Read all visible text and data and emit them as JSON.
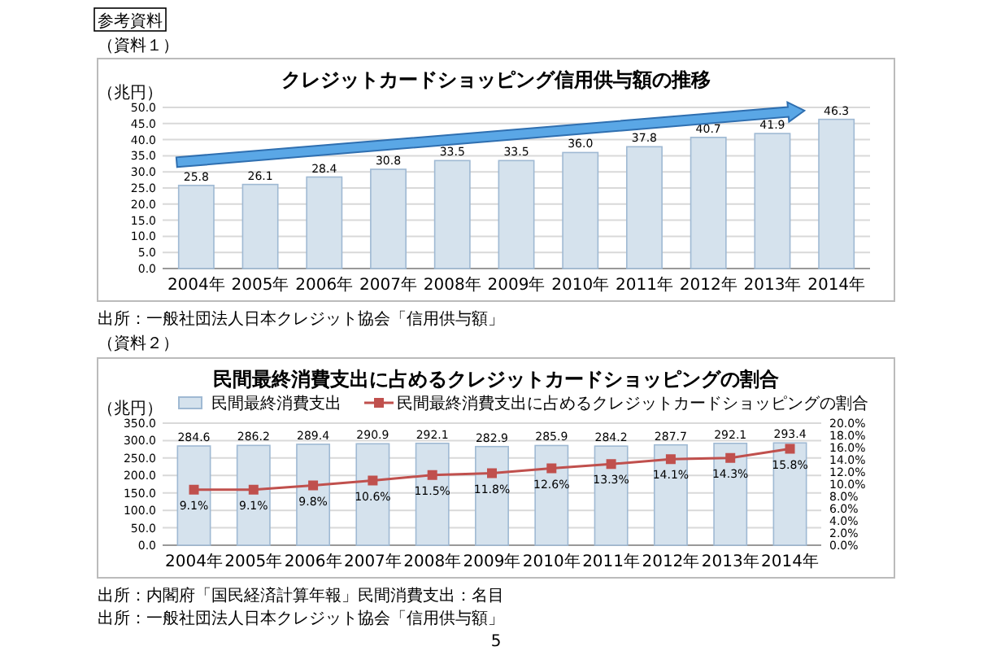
{
  "chart_data": [
    {
      "type": "bar",
      "title": "クレジットカードショッピング信用供与額の推移",
      "ylabel": "（兆円）",
      "categories": [
        "2004年",
        "2005年",
        "2006年",
        "2007年",
        "2008年",
        "2009年",
        "2010年",
        "2011年",
        "2012年",
        "2013年",
        "2014年"
      ],
      "values": [
        25.8,
        26.1,
        28.4,
        30.8,
        33.5,
        33.5,
        36.0,
        37.8,
        40.7,
        41.9,
        46.3
      ],
      "color": "#d5e2ed",
      "ylim": [
        0,
        50
      ],
      "yticks": [
        {
          "value": 0,
          "label": "0.0"
        },
        {
          "value": 5,
          "label": "5.0"
        },
        {
          "value": 10,
          "label": "10.0"
        },
        {
          "value": 15,
          "label": "15.0"
        },
        {
          "value": 20,
          "label": "20.0"
        },
        {
          "value": 25,
          "label": "25.0"
        },
        {
          "value": 30,
          "label": "30.0"
        },
        {
          "value": 35,
          "label": "35.0"
        },
        {
          "value": 40,
          "label": "40.0"
        },
        {
          "value": 45,
          "label": "45.0"
        },
        {
          "value": 50,
          "label": "50.0"
        }
      ],
      "grid": "y",
      "value_labels": [
        "25.8",
        "26.1",
        "28.4",
        "30.8",
        "33.5",
        "33.5",
        "36.0",
        "37.8",
        "40.7",
        "41.9",
        "46.3"
      ],
      "annotations": [
        "参考資料",
        "（資料１）",
        "出所：一般社団法人日本クレジット協会「信用供与額」"
      ]
    },
    {
      "type": "bar",
      "title": "民間最終消費支出に占めるクレジットカードショッピングの割合",
      "ylabel": "（兆円）",
      "categories": [
        "2004年",
        "2005年",
        "2006年",
        "2007年",
        "2008年",
        "2009年",
        "2010年",
        "2011年",
        "2012年",
        "2013年",
        "2014年"
      ],
      "series": [
        {
          "name": "民間最終消費支出",
          "color": "#d5e2ed",
          "values": [
            284.6,
            286.2,
            289.4,
            290.9,
            292.1,
            282.9,
            285.9,
            284.2,
            287.7,
            292.1,
            293.4
          ],
          "value_labels": [
            "284.6",
            "286.2",
            "289.4",
            "290.9",
            "292.1",
            "282.9",
            "285.9",
            "284.2",
            "287.7",
            "292.1",
            "293.4"
          ]
        },
        {
          "name": "民間最終消費支出に占めるクレジットカードショッピングの割合",
          "type": "line",
          "axis": "y2",
          "color": "#c0504d",
          "values": [
            9.1,
            9.1,
            9.8,
            10.6,
            11.5,
            11.8,
            12.6,
            13.3,
            14.1,
            14.3,
            15.8
          ],
          "value_labels": [
            "9.1%",
            "9.1%",
            "9.8%",
            "10.6%",
            "11.5%",
            "11.8%",
            "12.6%",
            "13.3%",
            "14.1%",
            "14.3%",
            "15.8%"
          ]
        }
      ],
      "ylim": [
        0,
        350
      ],
      "yticks": [
        {
          "value": 0,
          "label": "0.0"
        },
        {
          "value": 50,
          "label": "50.0"
        },
        {
          "value": 100,
          "label": "100.0"
        },
        {
          "value": 150,
          "label": "150.0"
        },
        {
          "value": 200,
          "label": "200.0"
        },
        {
          "value": 250,
          "label": "250.0"
        },
        {
          "value": 300,
          "label": "300.0"
        },
        {
          "value": 350,
          "label": "350.0"
        }
      ],
      "y2lim": [
        0,
        20
      ],
      "y2ticks": [
        {
          "value": 0,
          "label": "0.0%"
        },
        {
          "value": 2,
          "label": "2.0%"
        },
        {
          "value": 4,
          "label": "4.0%"
        },
        {
          "value": 6,
          "label": "6.0%"
        },
        {
          "value": 8,
          "label": "8.0%"
        },
        {
          "value": 10,
          "label": "10.0%"
        },
        {
          "value": 12,
          "label": "12.0%"
        },
        {
          "value": 14,
          "label": "14.0%"
        },
        {
          "value": 16,
          "label": "16.0%"
        },
        {
          "value": 18,
          "label": "18.0%"
        },
        {
          "value": 20,
          "label": "20.0%"
        }
      ],
      "grid": "y",
      "legend": "top",
      "marker": "square",
      "annotations": [
        "（資料２）",
        "出所：内閣府「国民経済計算年報」民間消費支出：名目",
        "出所：一般社団法人日本クレジット協会「信用供与額」",
        "5"
      ]
    }
  ]
}
